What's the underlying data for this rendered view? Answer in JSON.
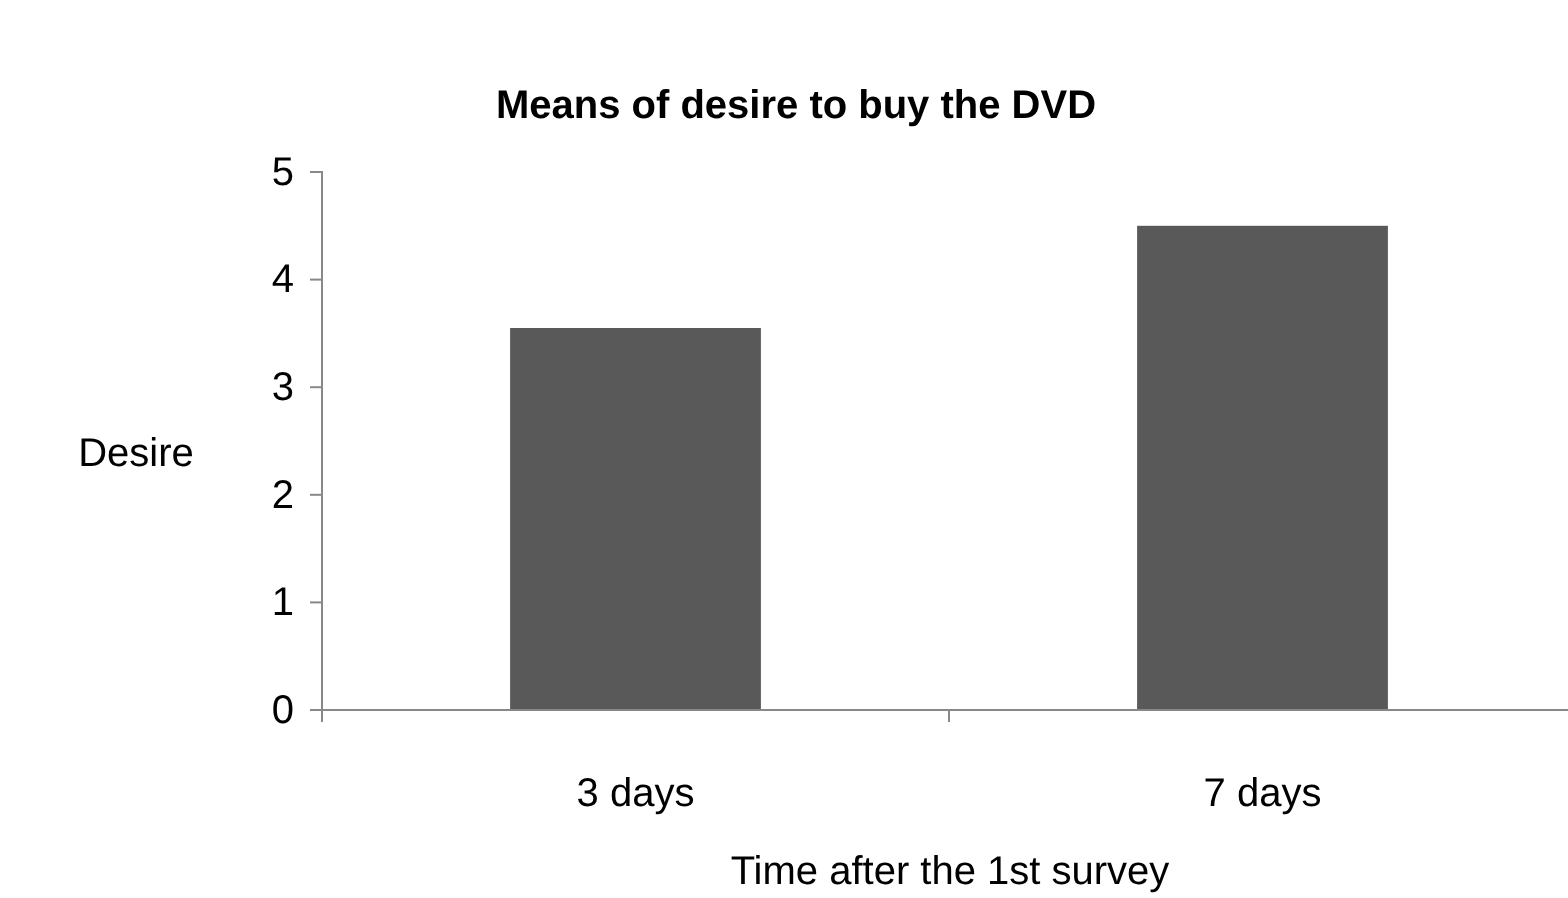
{
  "chart_data": {
    "type": "bar",
    "title": "Means of desire to buy the DVD",
    "xlabel": "Time after the 1st survey",
    "ylabel": "Desire",
    "categories": [
      "3 days",
      "7 days"
    ],
    "values": [
      3.55,
      4.5
    ],
    "color": "#595959",
    "ylim": [
      0,
      5
    ],
    "yticks": [
      0,
      1,
      2,
      3,
      4,
      5
    ],
    "grid": false
  }
}
